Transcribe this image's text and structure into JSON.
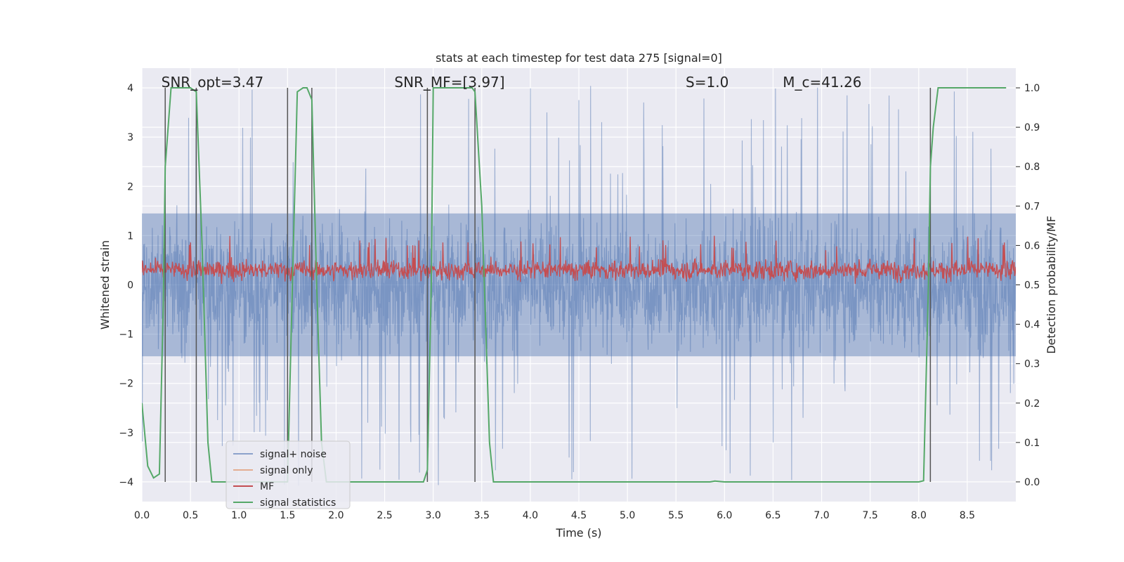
{
  "chart_data": {
    "type": "line",
    "title": "stats at each timestep for test data 275 [signal=0]",
    "xlabel": "Time (s)",
    "ylabel": "Whitened strain",
    "ylabel_right": "Detection probability/MF",
    "xlim": [
      0.0,
      9.0
    ],
    "ylim": [
      -4.4,
      4.4
    ],
    "ylim_right": [
      -0.05,
      1.05
    ],
    "xticks": [
      0.0,
      0.5,
      1.0,
      1.5,
      2.0,
      2.5,
      3.0,
      3.5,
      4.0,
      4.5,
      5.0,
      5.5,
      6.0,
      6.5,
      7.0,
      7.5,
      8.0,
      8.5
    ],
    "xtick_labels": [
      "0.0",
      "0.5",
      "1.0",
      "1.5",
      "2.0",
      "2.5",
      "3.0",
      "3.5",
      "4.0",
      "4.5",
      "5.0",
      "5.5",
      "6.0",
      "6.5",
      "7.0",
      "7.5",
      "8.0",
      "8.5"
    ],
    "yticks": [
      -4,
      -3,
      -2,
      -1,
      0,
      1,
      2,
      3,
      4
    ],
    "ytick_labels": [
      "−4",
      "−3",
      "−2",
      "−1",
      "0",
      "1",
      "2",
      "3",
      "4"
    ],
    "yticks_right": [
      0.0,
      0.1,
      0.2,
      0.3,
      0.4,
      0.5,
      0.6,
      0.7,
      0.8,
      0.9,
      1.0
    ],
    "ytick_labels_right": [
      "0.0",
      "0.1",
      "0.2",
      "0.3",
      "0.4",
      "0.5",
      "0.6",
      "0.7",
      "0.8",
      "0.9",
      "1.0"
    ],
    "grid": true,
    "legend_position": "lower-left",
    "annotations": [
      {
        "text": "SNR_opt=3.47",
        "x": 0.2
      },
      {
        "text": "SNR_MF=[3.97]",
        "x": 2.6
      },
      {
        "text": "S=1.0",
        "x": 5.6
      },
      {
        "text": "M_c=41.26",
        "x": 6.6
      }
    ],
    "vlines": [
      0.24,
      0.56,
      1.5,
      1.75,
      2.94,
      3.43,
      8.12
    ],
    "series": [
      {
        "name": "signal+ noise",
        "color": "#4c72b0",
        "style": "noise",
        "axis": "left",
        "amplitude_typical": 1.6,
        "amplitude_max": 4.1
      },
      {
        "name": "signal only",
        "color": "#dd8452",
        "style": "flat",
        "axis": "left",
        "values": []
      },
      {
        "name": "MF",
        "color": "#c44e52",
        "style": "mf",
        "axis": "left",
        "baseline": 0.3,
        "typical_range": [
          0.05,
          0.7
        ],
        "max": 1.0
      },
      {
        "name": "signal statistics",
        "color": "#55a868",
        "style": "line",
        "axis": "right",
        "x": [
          0.0,
          0.06,
          0.12,
          0.18,
          0.22,
          0.24,
          0.3,
          0.36,
          0.42,
          0.5,
          0.56,
          0.62,
          0.68,
          0.72,
          1.0,
          1.2,
          1.4,
          1.5,
          1.55,
          1.6,
          1.66,
          1.7,
          1.75,
          1.8,
          1.85,
          1.9,
          2.0,
          2.5,
          2.9,
          2.94,
          2.98,
          3.0,
          3.3,
          3.4,
          3.43,
          3.5,
          3.58,
          3.62,
          4.0,
          5.0,
          5.5,
          5.85,
          5.9,
          6.0,
          7.0,
          8.0,
          8.05,
          8.1,
          8.12,
          8.15,
          8.2,
          8.3,
          8.5,
          8.9
        ],
        "y": [
          0.2,
          0.04,
          0.01,
          0.02,
          0.45,
          0.8,
          1.0,
          1.0,
          1.0,
          1.0,
          0.99,
          0.6,
          0.1,
          0.0,
          0.0,
          0.0,
          0.0,
          0.0,
          0.5,
          0.99,
          1.0,
          1.0,
          0.97,
          0.5,
          0.1,
          0.0,
          0.0,
          0.0,
          0.0,
          0.03,
          0.5,
          1.0,
          1.0,
          1.0,
          0.99,
          0.7,
          0.1,
          0.0,
          0.0,
          0.0,
          0.0,
          0.0,
          0.002,
          0.0,
          0.0,
          0.0,
          0.003,
          0.5,
          0.8,
          0.9,
          1.0,
          1.0,
          1.0,
          1.0
        ]
      }
    ]
  }
}
